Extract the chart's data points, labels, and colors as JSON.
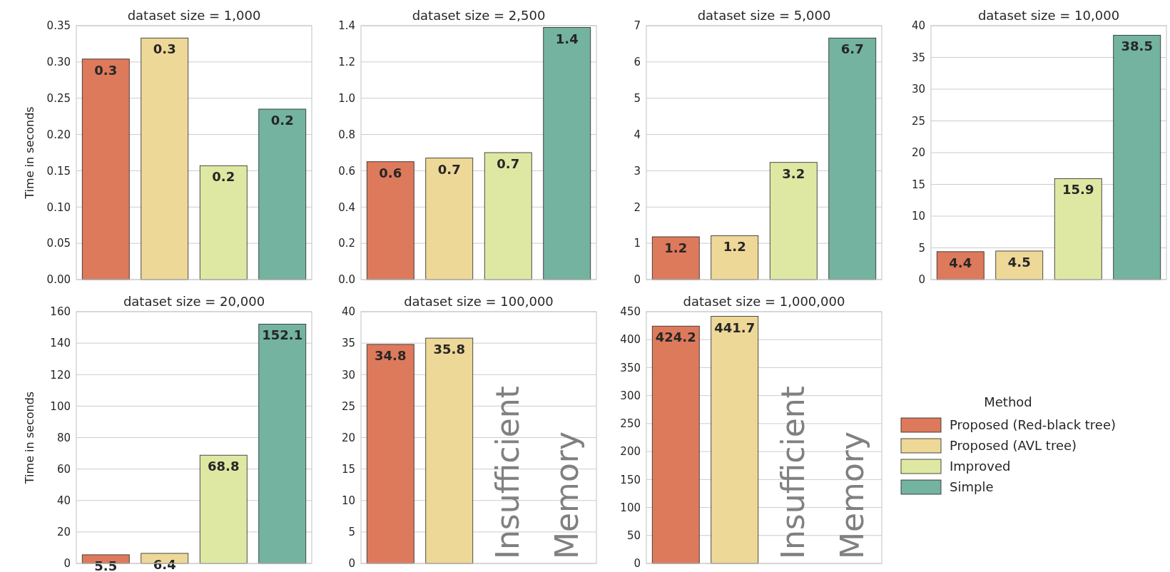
{
  "chart_data": [
    {
      "type": "bar",
      "title": "dataset size = 1,000",
      "ylabel": "Time in seconds",
      "categories": [
        null
      ],
      "ylim": [
        0,
        0.35
      ],
      "yticks": [
        {
          "value": 0,
          "label": "0.00"
        },
        0.05,
        {
          "value": 0.1,
          "label": "0.10"
        },
        0.15,
        {
          "value": 0.2,
          "label": "0.20"
        },
        0.25,
        {
          "value": 0.3,
          "label": "0.30"
        },
        0.35
      ],
      "grid": "y",
      "tick_labels": "y",
      "series": [
        {
          "color": "#dd7a5c",
          "values": [
            0.304
          ],
          "value_labels": [
            "0.3"
          ]
        },
        {
          "color": "#eed898",
          "values": [
            0.333
          ],
          "value_labels": [
            "0.3"
          ]
        },
        {
          "color": "#dfe8a3",
          "values": [
            0.157
          ],
          "value_labels": [
            "0.2"
          ]
        },
        {
          "color": "#73b39f",
          "values": [
            0.235
          ],
          "value_labels": [
            "0.2"
          ]
        }
      ]
    },
    {
      "type": "bar",
      "title": "dataset size = 2,500",
      "categories": [
        null
      ],
      "ylim": [
        0,
        1.4
      ],
      "yticks": [
        {
          "value": 0,
          "label": "0.0"
        },
        0.2,
        0.4,
        0.6,
        0.8,
        {
          "value": 1,
          "label": "1.0"
        },
        1.2,
        1.4
      ],
      "grid": "y",
      "tick_labels": "y",
      "series": [
        {
          "color": "#dd7a5c",
          "values": [
            0.65
          ],
          "value_labels": [
            "0.6"
          ]
        },
        {
          "color": "#eed898",
          "values": [
            0.67
          ],
          "value_labels": [
            "0.7"
          ]
        },
        {
          "color": "#dfe8a3",
          "values": [
            0.7
          ],
          "value_labels": [
            "0.7"
          ]
        },
        {
          "color": "#73b39f",
          "values": [
            1.39
          ],
          "value_labels": [
            "1.4"
          ]
        }
      ]
    },
    {
      "type": "bar",
      "title": "dataset size = 5,000",
      "categories": [
        null
      ],
      "ylim": [
        0,
        7
      ],
      "yticks": [
        0,
        1,
        2,
        3,
        4,
        5,
        6,
        7
      ],
      "grid": "y",
      "tick_labels": "y",
      "series": [
        {
          "color": "#dd7a5c",
          "values": [
            1.18
          ],
          "value_labels": [
            "1.2"
          ]
        },
        {
          "color": "#eed898",
          "values": [
            1.21
          ],
          "value_labels": [
            "1.2"
          ]
        },
        {
          "color": "#dfe8a3",
          "values": [
            3.23
          ],
          "value_labels": [
            "3.2"
          ]
        },
        {
          "color": "#73b39f",
          "values": [
            6.66
          ],
          "value_labels": [
            "6.7"
          ]
        }
      ]
    },
    {
      "type": "bar",
      "title": "dataset size = 10,000",
      "categories": [
        null
      ],
      "ylim": [
        0,
        40
      ],
      "yticks": [
        0,
        5,
        10,
        15,
        20,
        25,
        30,
        35,
        40
      ],
      "grid": "y",
      "tick_labels": "y",
      "series": [
        {
          "color": "#dd7a5c",
          "values": [
            4.4
          ],
          "value_labels": [
            "4.4"
          ]
        },
        {
          "color": "#eed898",
          "values": [
            4.5
          ],
          "value_labels": [
            "4.5"
          ]
        },
        {
          "color": "#dfe8a3",
          "values": [
            15.9
          ],
          "value_labels": [
            "15.9"
          ]
        },
        {
          "color": "#73b39f",
          "values": [
            38.5
          ],
          "value_labels": [
            "38.5"
          ]
        }
      ]
    },
    {
      "type": "bar",
      "title": "dataset size = 20,000",
      "ylabel": "Time in seconds",
      "categories": [
        null
      ],
      "ylim": [
        0,
        160
      ],
      "yticks": [
        0,
        20,
        40,
        60,
        80,
        100,
        120,
        140,
        160
      ],
      "grid": "y",
      "tick_labels": "y",
      "series": [
        {
          "color": "#dd7a5c",
          "values": [
            5.5
          ],
          "value_labels": [
            "5.5"
          ]
        },
        {
          "color": "#eed898",
          "values": [
            6.4
          ],
          "value_labels": [
            "6.4"
          ]
        },
        {
          "color": "#dfe8a3",
          "values": [
            68.8
          ],
          "value_labels": [
            "68.8"
          ]
        },
        {
          "color": "#73b39f",
          "values": [
            152.1
          ],
          "value_labels": [
            "152.1"
          ]
        }
      ]
    },
    {
      "type": "bar",
      "title": "dataset size = 100,000",
      "categories": [
        null
      ],
      "ylim": [
        0,
        40
      ],
      "yticks": [
        0,
        5,
        10,
        15,
        20,
        25,
        30,
        35,
        40
      ],
      "grid": "y",
      "tick_labels": "y",
      "annotations": [
        "Insufficient",
        "Memory"
      ],
      "series": [
        {
          "color": "#dd7a5c",
          "values": [
            34.8
          ],
          "value_labels": [
            "34.8"
          ]
        },
        {
          "color": "#eed898",
          "values": [
            35.8
          ],
          "value_labels": [
            "35.8"
          ]
        },
        {
          "values": [
            null
          ]
        },
        {
          "values": [
            null
          ]
        }
      ]
    },
    {
      "type": "bar",
      "title": "dataset size = 1,000,000",
      "categories": [
        null
      ],
      "ylim": [
        0,
        450
      ],
      "yticks": [
        0,
        50,
        100,
        150,
        200,
        250,
        300,
        350,
        400,
        450
      ],
      "grid": "y",
      "tick_labels": "y",
      "annotations": [
        "Insufficient",
        "Memory"
      ],
      "legend": "right",
      "legend_title": "Method",
      "series": [
        {
          "name": "Proposed (Red-black tree)",
          "color": "#dd7a5c",
          "values": [
            424.2
          ],
          "value_labels": [
            "424.2"
          ]
        },
        {
          "name": "Proposed (AVL tree)",
          "color": "#eed898",
          "values": [
            441.7
          ],
          "value_labels": [
            "441.7"
          ]
        },
        {
          "name": "Improved",
          "color": "#dfe8a3",
          "values": [
            null
          ]
        },
        {
          "name": "Simple",
          "color": "#73b39f",
          "values": [
            null
          ]
        }
      ]
    }
  ]
}
